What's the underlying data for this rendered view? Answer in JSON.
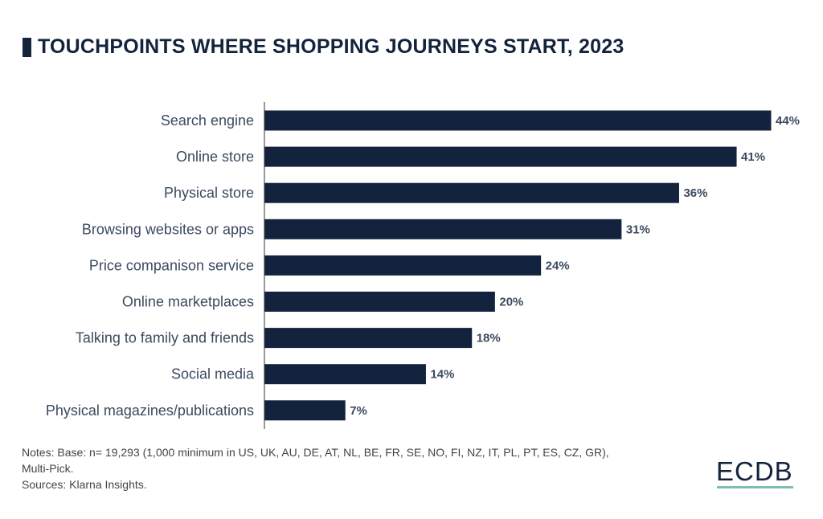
{
  "chart_data": {
    "type": "bar",
    "orientation": "horizontal",
    "title": "TOUCHPOINTS WHERE SHOPPING JOURNEYS START, 2023",
    "categories": [
      "Search engine",
      "Online store",
      "Physical store",
      "Browsing websites or apps",
      "Price companison service",
      "Online marketplaces",
      "Talking to family and friends",
      "Social media",
      "Physical magazines/publications"
    ],
    "values": [
      44,
      41,
      36,
      31,
      24,
      20,
      18,
      14,
      7
    ],
    "value_labels": [
      "44%",
      "41%",
      "36%",
      "31%",
      "24%",
      "20%",
      "18%",
      "14%",
      "7%"
    ],
    "xlim": [
      0,
      44
    ],
    "grid": false,
    "bar_color": "#13233d",
    "label_color": "#3c4a5e"
  },
  "notes": {
    "line1": "Notes: Base: n= 19,293 (1,000 minimum in US, UK, AU, DE, AT, NL, BE, FR, SE, NO, FI, NZ, IT, PL, PT, ES, CZ, GR),",
    "line2": "Multi-Pick.",
    "line3": "Sources: Klarna Insights."
  },
  "logo": {
    "text": "ECDB",
    "accent": "#7cbfb0"
  }
}
